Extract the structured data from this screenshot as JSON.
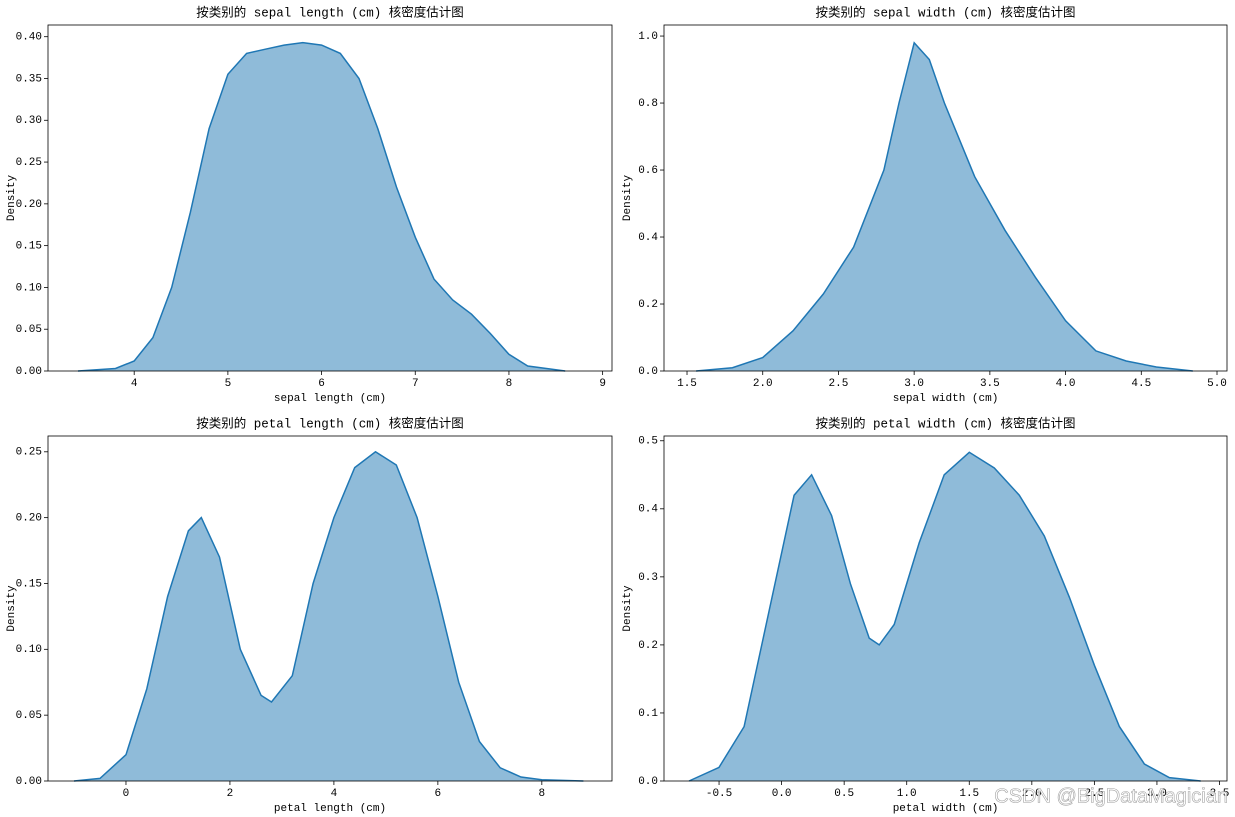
{
  "chart_data": [
    {
      "type": "area",
      "title": "按类别的 sepal length (cm) 核密度估计图",
      "xlabel": "sepal length (cm)",
      "ylabel": "Density",
      "color": "#1f77b4",
      "x": [
        3.4,
        3.8,
        4.0,
        4.2,
        4.4,
        4.6,
        4.8,
        5.0,
        5.2,
        5.4,
        5.6,
        5.8,
        6.0,
        6.2,
        6.4,
        6.6,
        6.8,
        7.0,
        7.2,
        7.4,
        7.6,
        7.8,
        8.0,
        8.2,
        8.6
      ],
      "values": [
        0,
        0.003,
        0.012,
        0.04,
        0.1,
        0.19,
        0.29,
        0.355,
        0.38,
        0.385,
        0.39,
        0.393,
        0.39,
        0.38,
        0.35,
        0.29,
        0.22,
        0.16,
        0.11,
        0.085,
        0.068,
        0.045,
        0.02,
        0.006,
        0
      ],
      "xlim": [
        3.08,
        9.1
      ],
      "ylim": [
        0,
        0.414
      ],
      "xticks": [
        4,
        5,
        6,
        7,
        8,
        9
      ],
      "yticks": [
        {
          "value": 0,
          "label": "0.00"
        },
        0.05,
        {
          "value": 0.1,
          "label": "0.10"
        },
        0.15,
        {
          "value": 0.2,
          "label": "0.20"
        },
        0.25,
        {
          "value": 0.3,
          "label": "0.30"
        },
        0.35,
        {
          "value": 0.4,
          "label": "0.40"
        }
      ]
    },
    {
      "type": "area",
      "title": "按类别的 sepal width (cm) 核密度估计图",
      "xlabel": "sepal width (cm)",
      "ylabel": "Density",
      "color": "#1f77b4",
      "x": [
        1.56,
        1.8,
        2.0,
        2.2,
        2.4,
        2.6,
        2.8,
        2.9,
        3.0,
        3.1,
        3.2,
        3.4,
        3.6,
        3.8,
        4.0,
        4.2,
        4.4,
        4.6,
        4.84
      ],
      "values": [
        0,
        0.01,
        0.04,
        0.12,
        0.23,
        0.37,
        0.6,
        0.8,
        0.98,
        0.93,
        0.8,
        0.58,
        0.42,
        0.28,
        0.15,
        0.06,
        0.03,
        0.012,
        0
      ],
      "xlim": [
        1.348,
        5.066
      ],
      "ylim": [
        0,
        1.033
      ],
      "xticks": [
        1.5,
        {
          "value": 2,
          "label": "2.0"
        },
        2.5,
        {
          "value": 3,
          "label": "3.0"
        },
        3.5,
        {
          "value": 4,
          "label": "4.0"
        },
        4.5,
        {
          "value": 5,
          "label": "5.0"
        }
      ],
      "yticks": [
        {
          "value": 0,
          "label": "0.0"
        },
        0.2,
        0.4,
        0.6,
        0.8,
        {
          "value": 1,
          "label": "1.0"
        }
      ]
    },
    {
      "type": "area",
      "title": "按类别的 petal length (cm) 核密度估计图",
      "xlabel": "petal length (cm)",
      "ylabel": "Density",
      "color": "#1f77b4",
      "x": [
        -1,
        -0.5,
        0,
        0.4,
        0.8,
        1.2,
        1.45,
        1.8,
        2.2,
        2.6,
        2.8,
        3.2,
        3.6,
        4.0,
        4.4,
        4.8,
        5.2,
        5.6,
        6.0,
        6.4,
        6.8,
        7.2,
        7.6,
        8.0,
        8.8
      ],
      "values": [
        0,
        0.002,
        0.02,
        0.07,
        0.14,
        0.19,
        0.2,
        0.17,
        0.1,
        0.065,
        0.06,
        0.08,
        0.15,
        0.2,
        0.238,
        0.25,
        0.24,
        0.2,
        0.14,
        0.075,
        0.03,
        0.01,
        0.003,
        0.001,
        0
      ],
      "xlim": [
        -1.5,
        9.35
      ],
      "ylim": [
        0,
        0.262
      ],
      "xticks": [
        0,
        2,
        4,
        6,
        8
      ],
      "yticks": [
        {
          "value": 0,
          "label": "0.00"
        },
        0.05,
        {
          "value": 0.1,
          "label": "0.10"
        },
        0.15,
        {
          "value": 0.2,
          "label": "0.20"
        },
        0.25
      ]
    },
    {
      "type": "area",
      "title": "按类别的 petal width (cm) 核密度估计图",
      "xlabel": "petal width (cm)",
      "ylabel": "Density",
      "color": "#1f77b4",
      "x": [
        -0.74,
        -0.5,
        -0.3,
        -0.1,
        0.1,
        0.24,
        0.4,
        0.55,
        0.7,
        0.78,
        0.9,
        1.1,
        1.3,
        1.5,
        1.7,
        1.9,
        2.1,
        2.3,
        2.5,
        2.7,
        2.9,
        3.1,
        3.35
      ],
      "values": [
        0,
        0.02,
        0.08,
        0.25,
        0.42,
        0.45,
        0.39,
        0.29,
        0.21,
        0.2,
        0.23,
        0.35,
        0.45,
        0.483,
        0.46,
        0.42,
        0.36,
        0.27,
        0.17,
        0.08,
        0.025,
        0.005,
        0
      ],
      "xlim": [
        -0.94,
        3.56
      ],
      "ylim": [
        0,
        0.507
      ],
      "xticks": [
        -0.5,
        {
          "value": 0,
          "label": "0.0"
        },
        0.5,
        {
          "value": 1,
          "label": "1.0"
        },
        1.5,
        {
          "value": 2,
          "label": "2.0"
        },
        2.5,
        {
          "value": 3,
          "label": "3.0"
        },
        3.5
      ],
      "yticks": [
        {
          "value": 0,
          "label": "0.0"
        },
        0.1,
        0.2,
        0.3,
        0.4,
        0.5
      ]
    }
  ],
  "watermark": "CSDN @BigDataMagician"
}
